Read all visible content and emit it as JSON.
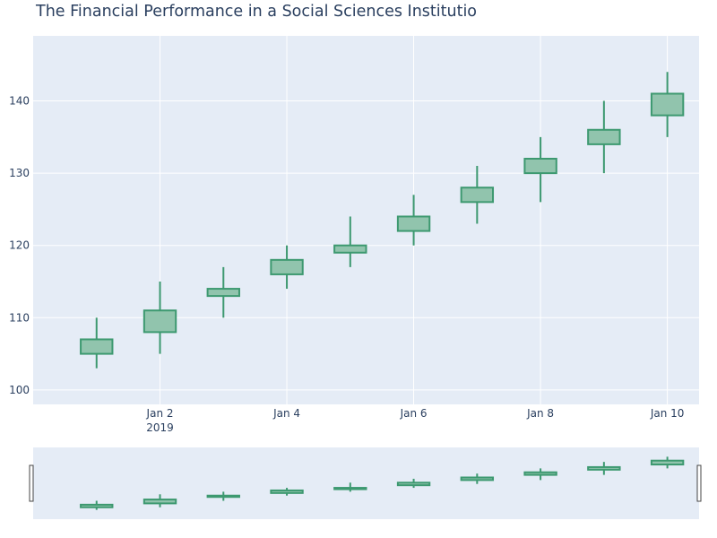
{
  "chart_data": {
    "type": "candlestick",
    "title": "The Financial Performance in a Social Sciences Institutio",
    "xlabel": "",
    "ylabel": "",
    "ylim": [
      98,
      149
    ],
    "y_ticks": [
      100,
      110,
      120,
      130,
      140
    ],
    "x_range": [
      "2018-12-31",
      "2019-01-10T12:00"
    ],
    "x_ticks": [
      {
        "date": "2019-01-02",
        "label": "Jan 2",
        "sublabel": "2019"
      },
      {
        "date": "2019-01-04",
        "label": "Jan 4",
        "sublabel": ""
      },
      {
        "date": "2019-01-06",
        "label": "Jan 6",
        "sublabel": ""
      },
      {
        "date": "2019-01-08",
        "label": "Jan 8",
        "sublabel": ""
      },
      {
        "date": "2019-01-10",
        "label": "Jan 10",
        "sublabel": ""
      }
    ],
    "grid": true,
    "range_slider": true,
    "colors": {
      "increasing_line": "#3d9970",
      "increasing_fill": "#91c4ad",
      "plot_background": "#e5ecf6",
      "grid": "#ffffff",
      "text": "#2a3f5f"
    },
    "series": [
      {
        "x": [
          "2019-01-01",
          "2019-01-02",
          "2019-01-03",
          "2019-01-04",
          "2019-01-05",
          "2019-01-06",
          "2019-01-07",
          "2019-01-08",
          "2019-01-09",
          "2019-01-10"
        ],
        "open": [
          105,
          108,
          113,
          116,
          119,
          122,
          126,
          130,
          134,
          138
        ],
        "high": [
          110,
          115,
          117,
          120,
          124,
          127,
          131,
          135,
          140,
          144
        ],
        "low": [
          103,
          105,
          110,
          114,
          117,
          120,
          123,
          126,
          130,
          135
        ],
        "close": [
          107,
          111,
          114,
          118,
          120,
          124,
          128,
          132,
          136,
          141
        ]
      }
    ]
  }
}
